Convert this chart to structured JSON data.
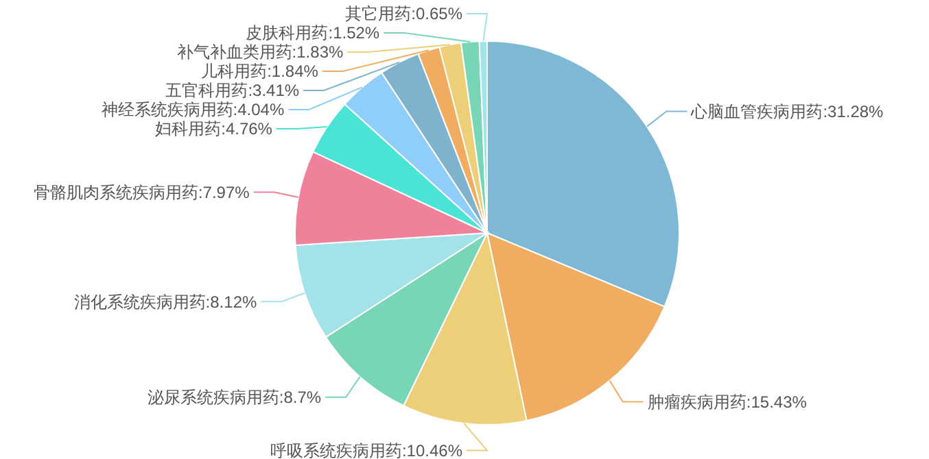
{
  "chart_data": {
    "type": "pie",
    "categories": [
      "心脑血管疾病用药",
      "肿瘤疾病用药",
      "呼吸系统疾病用药",
      "泌尿系统疾病用药",
      "消化系统疾病用药",
      "骨骼肌肉系统疾病用药",
      "妇科用药",
      "神经系统疾病用药",
      "五官科用药",
      "儿科用药",
      "补气补血类用药",
      "皮肤科用药",
      "其它用药"
    ],
    "values": [
      31.28,
      15.43,
      10.46,
      8.7,
      8.12,
      7.97,
      4.76,
      4.04,
      3.41,
      1.84,
      1.83,
      1.52,
      0.65
    ],
    "value_labels": [
      "31.28%",
      "15.43%",
      "10.46%",
      "8.7%",
      "8.12%",
      "7.97%",
      "4.76%",
      "4.04%",
      "3.41%",
      "1.84%",
      "1.83%",
      "1.52%",
      "0.65%"
    ],
    "colors": [
      "#7fb8d4",
      "#f0ad62",
      "#eccf78",
      "#78d6b6",
      "#a2e2e8",
      "#f0819a",
      "#4ae3d6",
      "#8fcdfa",
      "#7fb2cc",
      "#f0ad62",
      "#eccf78",
      "#78d6b6",
      "#a2e2e8"
    ],
    "data_labels": true
  }
}
